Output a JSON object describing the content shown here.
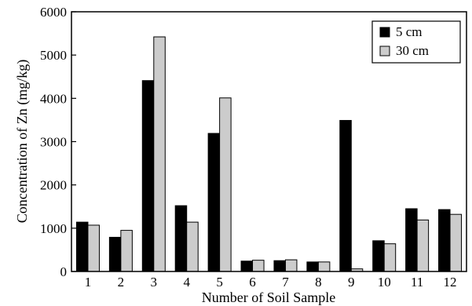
{
  "chart_data": {
    "type": "bar",
    "xlabel": "Number of Soil Sample",
    "ylabel": "Concentration of Zn (mg/kg)",
    "categories": [
      "1",
      "2",
      "3",
      "4",
      "5",
      "6",
      "7",
      "8",
      "9",
      "10",
      "11",
      "12"
    ],
    "series": [
      {
        "name": "5 cm",
        "color": "#000000",
        "values": [
          1140,
          790,
          4410,
          1520,
          3190,
          240,
          250,
          220,
          3490,
          710,
          1450,
          1430
        ]
      },
      {
        "name": "30 cm",
        "color": "#cccccc",
        "values": [
          1070,
          950,
          5420,
          1140,
          4010,
          260,
          270,
          220,
          60,
          640,
          1190,
          1320
        ]
      }
    ],
    "ylim": [
      0,
      6000
    ],
    "yticks": [
      0,
      1000,
      2000,
      3000,
      4000,
      5000,
      6000
    ],
    "grid": false,
    "legend_position": "top-right"
  }
}
